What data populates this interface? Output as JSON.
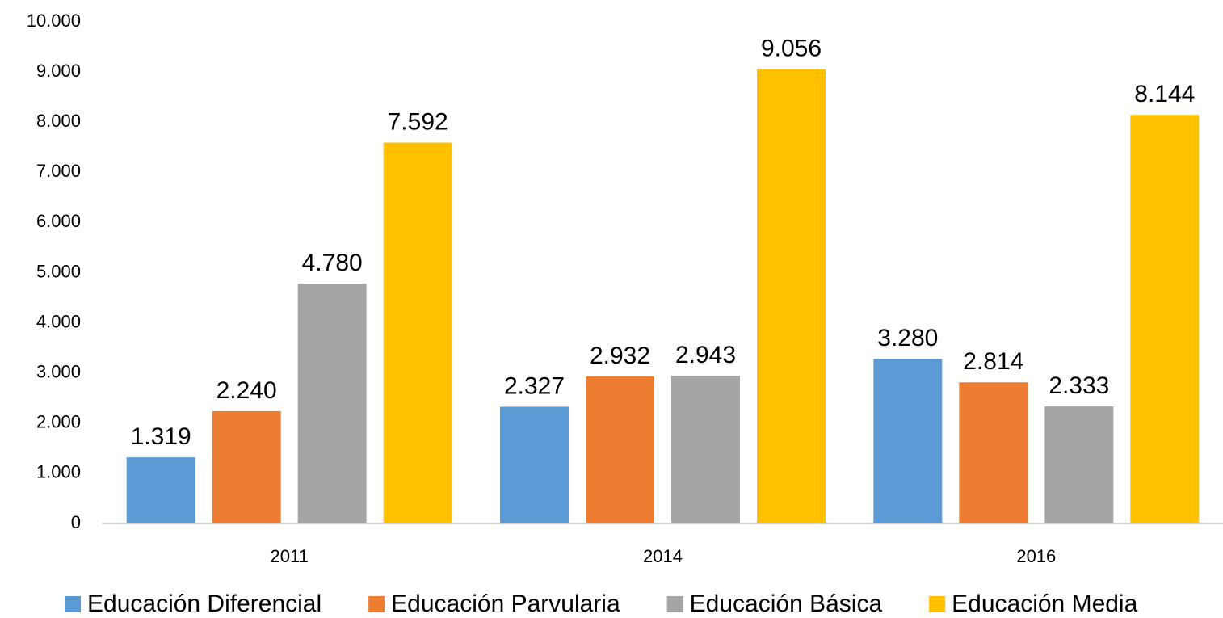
{
  "chart_data": {
    "type": "bar",
    "categories": [
      "2011",
      "2014",
      "2016"
    ],
    "series": [
      {
        "name": "Educación Diferencial",
        "color": "#5b9bd5",
        "values": [
          1319,
          2327,
          3280
        ],
        "value_labels": [
          "1.319",
          "2.327",
          "3.280"
        ]
      },
      {
        "name": "Educación Parvularia",
        "color": "#ed7d31",
        "values": [
          2240,
          2932,
          2814
        ],
        "value_labels": [
          "2.240",
          "2.932",
          "2.814"
        ]
      },
      {
        "name": "Educación Básica",
        "color": "#a5a5a5",
        "values": [
          4780,
          2943,
          2333
        ],
        "value_labels": [
          "4.780",
          "2.943",
          "2.333"
        ]
      },
      {
        "name": "Educación Media",
        "color": "#ffc000",
        "values": [
          7592,
          9056,
          8144
        ],
        "value_labels": [
          "7.592",
          "9.056",
          "8.144"
        ]
      }
    ],
    "ylim": [
      0,
      10000
    ],
    "yticks": [
      0,
      {
        "value": 1000,
        "label": "1.000"
      },
      {
        "value": 2000,
        "label": "2.000"
      },
      {
        "value": 3000,
        "label": "3.000"
      },
      {
        "value": 4000,
        "label": "4.000"
      },
      {
        "value": 5000,
        "label": "5.000"
      },
      {
        "value": 6000,
        "label": "6.000"
      },
      {
        "value": 7000,
        "label": "7.000"
      },
      {
        "value": 8000,
        "label": "8.000"
      },
      {
        "value": 9000,
        "label": "9.000"
      },
      {
        "value": 10000,
        "label": "10.000"
      }
    ],
    "grid": false,
    "legend": "bottom"
  }
}
